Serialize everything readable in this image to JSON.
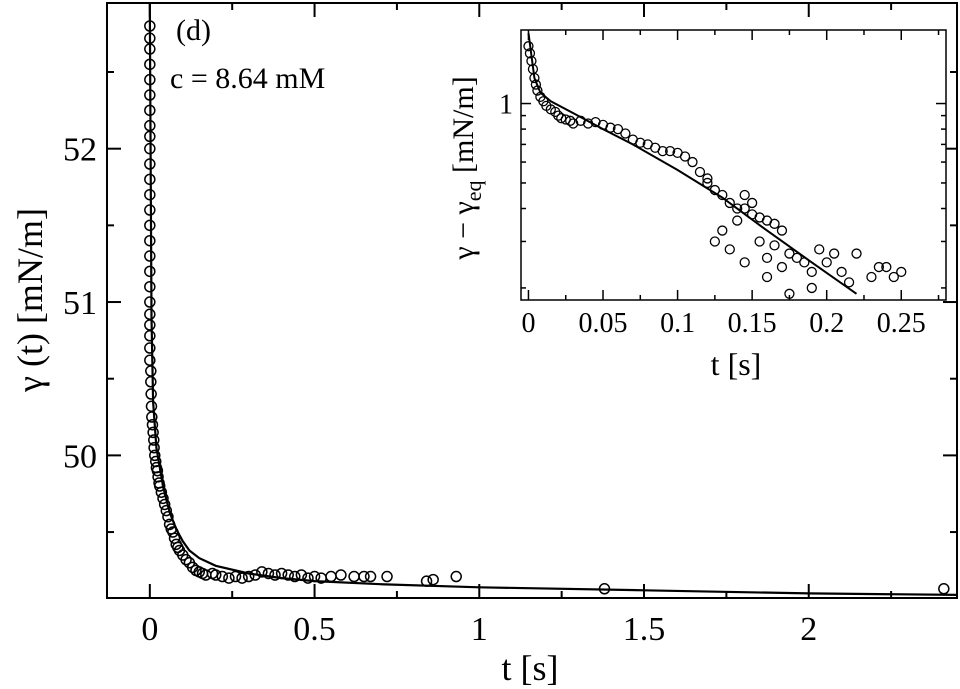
{
  "chart_data": [
    {
      "id": "main",
      "type": "scatter",
      "panel_label": "(d)",
      "annotation": "c = 8.64 mM",
      "xlabel": "t [s]",
      "ylabel": "γ (t) [mN/m]",
      "xlim": [
        -0.13,
        2.45
      ],
      "ylim": [
        49.07,
        52.95
      ],
      "xticks": [
        0,
        0.5,
        1,
        1.5,
        2
      ],
      "xtick_labels": [
        "0",
        "0.5",
        "1",
        "1.5",
        "2"
      ],
      "yticks": [
        50,
        51,
        52
      ],
      "ytick_labels": [
        "50",
        "51",
        "52"
      ],
      "grid": false,
      "series": [
        {
          "name": "data",
          "style": "open-circle",
          "points": [
            [
              0,
              52.8
            ],
            [
              0,
              52.72
            ],
            [
              0,
              52.65
            ],
            [
              0,
              52.55
            ],
            [
              0,
              52.45
            ],
            [
              0,
              52.35
            ],
            [
              0,
              52.25
            ],
            [
              0,
              52.15
            ],
            [
              0,
              52.08
            ],
            [
              0,
              52.0
            ],
            [
              0,
              51.9
            ],
            [
              0,
              51.8
            ],
            [
              0,
              51.7
            ],
            [
              0,
              51.6
            ],
            [
              0,
              51.5
            ],
            [
              0,
              51.4
            ],
            [
              0,
              51.3
            ],
            [
              0,
              51.2
            ],
            [
              0,
              51.1
            ],
            [
              0,
              51.0
            ],
            [
              0,
              50.92
            ],
            [
              0,
              50.85
            ],
            [
              0,
              50.78
            ],
            [
              0,
              50.7
            ],
            [
              0,
              50.62
            ],
            [
              0.003,
              50.55
            ],
            [
              0.003,
              50.48
            ],
            [
              0.004,
              50.4
            ],
            [
              0.005,
              50.32
            ],
            [
              0.006,
              50.25
            ],
            [
              0.008,
              50.2
            ],
            [
              0.01,
              50.15
            ],
            [
              0.012,
              50.1
            ],
            [
              0.013,
              50.05
            ],
            [
              0.015,
              50.0
            ],
            [
              0.018,
              49.96
            ],
            [
              0.02,
              49.92
            ],
            [
              0.023,
              49.9
            ],
            [
              0.025,
              49.86
            ],
            [
              0.028,
              49.82
            ],
            [
              0.03,
              49.8
            ],
            [
              0.035,
              49.76
            ],
            [
              0.04,
              49.72
            ],
            [
              0.045,
              49.68
            ],
            [
              0.05,
              49.64
            ],
            [
              0.055,
              49.6
            ],
            [
              0.06,
              49.55
            ],
            [
              0.065,
              49.52
            ],
            [
              0.07,
              49.5
            ],
            [
              0.075,
              49.46
            ],
            [
              0.08,
              49.42
            ],
            [
              0.085,
              49.4
            ],
            [
              0.09,
              49.38
            ],
            [
              0.1,
              49.35
            ],
            [
              0.11,
              49.32
            ],
            [
              0.12,
              49.3
            ],
            [
              0.13,
              49.27
            ],
            [
              0.14,
              49.25
            ],
            [
              0.15,
              49.24
            ],
            [
              0.16,
              49.23
            ],
            [
              0.17,
              49.22
            ],
            [
              0.19,
              49.23
            ],
            [
              0.2,
              49.22
            ],
            [
              0.22,
              49.21
            ],
            [
              0.24,
              49.2
            ],
            [
              0.26,
              49.21
            ],
            [
              0.28,
              49.2
            ],
            [
              0.3,
              49.21
            ],
            [
              0.32,
              49.22
            ],
            [
              0.34,
              49.24
            ],
            [
              0.36,
              49.23
            ],
            [
              0.38,
              49.22
            ],
            [
              0.4,
              49.23
            ],
            [
              0.42,
              49.22
            ],
            [
              0.44,
              49.21
            ],
            [
              0.46,
              49.22
            ],
            [
              0.48,
              49.2
            ],
            [
              0.5,
              49.21
            ],
            [
              0.52,
              49.2
            ],
            [
              0.55,
              49.21
            ],
            [
              0.58,
              49.22
            ],
            [
              0.62,
              49.21
            ],
            [
              0.65,
              49.21
            ],
            [
              0.67,
              49.21
            ],
            [
              0.72,
              49.21
            ],
            [
              0.84,
              49.18
            ],
            [
              0.86,
              49.19
            ],
            [
              0.93,
              49.21
            ],
            [
              1.38,
              49.13
            ],
            [
              2.41,
              49.13
            ]
          ]
        },
        {
          "name": "fit",
          "style": "line",
          "points": [
            [
              0,
              52.95
            ],
            [
              0.005,
              50.9
            ],
            [
              0.01,
              50.35
            ],
            [
              0.02,
              50.05
            ],
            [
              0.04,
              49.8
            ],
            [
              0.06,
              49.63
            ],
            [
              0.08,
              49.52
            ],
            [
              0.1,
              49.44
            ],
            [
              0.12,
              49.38
            ],
            [
              0.15,
              49.33
            ],
            [
              0.2,
              49.28
            ],
            [
              0.3,
              49.23
            ],
            [
              0.4,
              49.2
            ],
            [
              0.5,
              49.18
            ],
            [
              0.7,
              49.16
            ],
            [
              1.0,
              49.14
            ],
            [
              1.5,
              49.12
            ],
            [
              2.0,
              49.1
            ],
            [
              2.45,
              49.09
            ]
          ]
        }
      ]
    },
    {
      "id": "inset",
      "type": "scatter",
      "xlabel": "t [s]",
      "ylabel_main": "γ − γ",
      "ylabel_sub": "eq",
      "ylabel_unit": " [mN/m]",
      "yscale": "log",
      "xlim": [
        -0.005,
        0.28
      ],
      "ylim": [
        0.18,
        1.9
      ],
      "xticks": [
        0,
        0.05,
        0.1,
        0.15,
        0.2,
        0.25
      ],
      "xtick_labels": [
        "0",
        "0.05",
        "0.1",
        "0.15",
        "0.2",
        "0.25"
      ],
      "yticks": [
        1
      ],
      "ytick_labels": [
        "1"
      ],
      "grid": false,
      "series": [
        {
          "name": "data",
          "style": "open-circle",
          "points": [
            [
              0,
              1.65
            ],
            [
              0.001,
              1.55
            ],
            [
              0.002,
              1.45
            ],
            [
              0.003,
              1.35
            ],
            [
              0.004,
              1.25
            ],
            [
              0.005,
              1.18
            ],
            [
              0.006,
              1.12
            ],
            [
              0.008,
              1.06
            ],
            [
              0.01,
              1.02
            ],
            [
              0.012,
              0.98
            ],
            [
              0.015,
              0.95
            ],
            [
              0.018,
              0.93
            ],
            [
              0.02,
              0.9
            ],
            [
              0.022,
              0.88
            ],
            [
              0.025,
              0.87
            ],
            [
              0.028,
              0.86
            ],
            [
              0.03,
              0.84
            ],
            [
              0.035,
              0.86
            ],
            [
              0.04,
              0.84
            ],
            [
              0.045,
              0.85
            ],
            [
              0.05,
              0.83
            ],
            [
              0.055,
              0.81
            ],
            [
              0.06,
              0.8
            ],
            [
              0.065,
              0.77
            ],
            [
              0.07,
              0.73
            ],
            [
              0.075,
              0.71
            ],
            [
              0.08,
              0.7
            ],
            [
              0.085,
              0.68
            ],
            [
              0.09,
              0.66
            ],
            [
              0.095,
              0.66
            ],
            [
              0.1,
              0.65
            ],
            [
              0.105,
              0.63
            ],
            [
              0.11,
              0.6
            ],
            [
              0.115,
              0.55
            ],
            [
              0.12,
              0.5
            ],
            [
              0.125,
              0.47
            ],
            [
              0.13,
              0.45
            ],
            [
              0.135,
              0.42
            ],
            [
              0.14,
              0.4
            ],
            [
              0.145,
              0.4
            ],
            [
              0.15,
              0.38
            ],
            [
              0.155,
              0.37
            ],
            [
              0.16,
              0.36
            ],
            [
              0.165,
              0.35
            ],
            [
              0.17,
              0.33
            ],
            [
              0.125,
              0.3
            ],
            [
              0.13,
              0.33
            ],
            [
              0.135,
              0.28
            ],
            [
              0.14,
              0.36
            ],
            [
              0.145,
              0.25
            ],
            [
              0.15,
              0.42
            ],
            [
              0.155,
              0.3
            ],
            [
              0.16,
              0.26
            ],
            [
              0.165,
              0.29
            ],
            [
              0.17,
              0.24
            ],
            [
              0.175,
              0.27
            ],
            [
              0.18,
              0.26
            ],
            [
              0.185,
              0.25
            ],
            [
              0.19,
              0.23
            ],
            [
              0.195,
              0.28
            ],
            [
              0.2,
              0.25
            ],
            [
              0.205,
              0.27
            ],
            [
              0.21,
              0.23
            ],
            [
              0.215,
              0.21
            ],
            [
              0.22,
              0.27
            ],
            [
              0.23,
              0.22
            ],
            [
              0.235,
              0.24
            ],
            [
              0.24,
              0.24
            ],
            [
              0.245,
              0.22
            ],
            [
              0.25,
              0.23
            ],
            [
              0.175,
              0.19
            ],
            [
              0.19,
              0.2
            ],
            [
              0.16,
              0.22
            ],
            [
              0.145,
              0.45
            ],
            [
              0.12,
              0.52
            ]
          ]
        },
        {
          "name": "fit",
          "style": "line",
          "points": [
            [
              0,
              1.85
            ],
            [
              0.004,
              1.25
            ],
            [
              0.008,
              1.1
            ],
            [
              0.015,
              1.02
            ],
            [
              0.03,
              0.92
            ],
            [
              0.05,
              0.8
            ],
            [
              0.07,
              0.7
            ],
            [
              0.1,
              0.56
            ],
            [
              0.13,
              0.44
            ],
            [
              0.16,
              0.33
            ],
            [
              0.19,
              0.25
            ],
            [
              0.22,
              0.19
            ]
          ]
        }
      ]
    }
  ]
}
